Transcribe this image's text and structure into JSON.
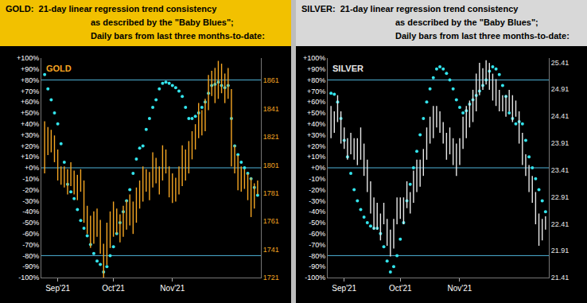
{
  "chart_data": [
    {
      "type": "combo",
      "title": [
        "GOLD:  21-day linear regression trend consistency",
        "as described by the \"Baby Blues\";",
        "Daily bars from last three months-to-date:"
      ],
      "panel_label": "GOLD",
      "categories": [
        null,
        null,
        null,
        null,
        "Sep'21",
        null,
        null,
        null,
        null,
        null,
        null,
        null,
        null,
        null,
        null,
        null,
        null,
        null,
        null,
        null,
        null,
        "Oct'21",
        null,
        null,
        null,
        null,
        null,
        null,
        null,
        null,
        null,
        null,
        null,
        null,
        null,
        null,
        null,
        null,
        null,
        "Nov'21",
        null,
        null,
        null,
        null,
        null,
        null,
        null,
        null,
        null,
        null,
        null,
        null,
        null,
        null,
        null,
        null,
        null,
        null,
        null,
        null,
        null,
        null,
        null,
        null,
        null,
        null
      ],
      "ylim": [
        -100,
        100
      ],
      "yticks": [
        {
          "value": 100,
          "label": "+100%"
        },
        {
          "value": 90,
          "label": "+90%"
        },
        {
          "value": 80,
          "label": "+80%"
        },
        {
          "value": 70,
          "label": "+70%"
        },
        {
          "value": 60,
          "label": "+60%"
        },
        {
          "value": 50,
          "label": "+50%"
        },
        {
          "value": 40,
          "label": "+40%"
        },
        {
          "value": 30,
          "label": "+30%"
        },
        {
          "value": 20,
          "label": "+20%"
        },
        {
          "value": 10,
          "label": "+10%"
        },
        {
          "value": 0,
          "label": "+0%"
        },
        {
          "value": -10,
          "label": "-10%"
        },
        {
          "value": -20,
          "label": "-20%"
        },
        {
          "value": -30,
          "label": "-30%"
        },
        {
          "value": -40,
          "label": "-40%"
        },
        {
          "value": -50,
          "label": "-50%"
        },
        {
          "value": -60,
          "label": "-60%"
        },
        {
          "value": -70,
          "label": "-70%"
        },
        {
          "value": -80,
          "label": "-80%"
        },
        {
          "value": -90,
          "label": "-90%"
        },
        {
          "value": -100,
          "label": "-100%"
        }
      ],
      "y2lim": [
        1721,
        1877
      ],
      "y2ticks": [
        1721,
        1741,
        1761,
        1781,
        1801,
        1821,
        1841,
        1861
      ],
      "hlines": [
        80,
        0,
        -80
      ],
      "grid": false,
      "series": [
        {
          "type": "scatter",
          "marker": "circle",
          "color": "#33e4ec",
          "values": [
            85,
            72,
            62,
            50,
            40,
            22,
            5,
            -15,
            -22,
            -28,
            -38,
            -48,
            -55,
            -62,
            -70,
            -78,
            -85,
            -88,
            -95,
            -90,
            -80,
            -72,
            -60,
            -50,
            -40,
            -30,
            -20,
            -5,
            8,
            18,
            20,
            35,
            45,
            55,
            62,
            72,
            77,
            78,
            77,
            75,
            73,
            70,
            65,
            55,
            45,
            45,
            47,
            50,
            55,
            60,
            68,
            75,
            76,
            78,
            75,
            73,
            75,
            45,
            20,
            12,
            5,
            0,
            -5,
            -10,
            -18,
            -25
          ]
        },
        {
          "type": "range",
          "axis": "y2",
          "color": "#f5a623",
          "low": [
            1795,
            1808,
            1810,
            1803,
            1790,
            1787,
            1785,
            1780,
            1786,
            1780,
            1776,
            1782,
            1760,
            1752,
            1742,
            1745,
            1750,
            1738,
            1721,
            1730,
            1742,
            1750,
            1752,
            1746,
            1750,
            1755,
            1758,
            1752,
            1760,
            1770,
            1775,
            1782,
            1776,
            1785,
            1788,
            1780,
            1790,
            1795,
            1778,
            1774,
            1775,
            1780,
            1786,
            1790,
            1795,
            1805,
            1812,
            1820,
            1822,
            1825,
            1840,
            1850,
            1845,
            1848,
            1852,
            1845,
            1848,
            1800,
            1795,
            1783,
            1782,
            1784,
            1776,
            1764,
            1770,
            1780
          ],
          "high": [
            1832,
            1828,
            1826,
            1822,
            1812,
            1800,
            1800,
            1798,
            1803,
            1797,
            1794,
            1798,
            1790,
            1772,
            1765,
            1768,
            1770,
            1762,
            1745,
            1760,
            1768,
            1775,
            1770,
            1766,
            1772,
            1776,
            1780,
            1775,
            1785,
            1790,
            1800,
            1798,
            1796,
            1810,
            1806,
            1800,
            1815,
            1812,
            1800,
            1795,
            1792,
            1800,
            1815,
            1812,
            1818,
            1825,
            1830,
            1845,
            1840,
            1848,
            1865,
            1868,
            1870,
            1875,
            1873,
            1866,
            1870,
            1855,
            1815,
            1808,
            1800,
            1798,
            1795,
            1792,
            1788,
            1790
          ]
        }
      ]
    },
    {
      "type": "combo",
      "title": [
        "SILVER:  21-day linear regression trend consistency",
        "as described by the \"Baby Blues\";",
        "Daily bars from last three months-to-date:"
      ],
      "panel_label": "SILVER",
      "categories": [
        null,
        null,
        null,
        null,
        "Sep'21",
        null,
        null,
        null,
        null,
        null,
        null,
        null,
        null,
        null,
        null,
        null,
        null,
        null,
        null,
        null,
        null,
        "Oct'21",
        null,
        null,
        null,
        null,
        null,
        null,
        null,
        null,
        null,
        null,
        null,
        null,
        null,
        null,
        null,
        null,
        null,
        "Nov'21",
        null,
        null,
        null,
        null,
        null,
        null,
        null,
        null,
        null,
        null,
        null,
        null,
        null,
        null,
        null,
        null,
        null,
        null,
        null,
        null,
        null,
        null,
        null,
        null,
        null,
        null
      ],
      "ylim": [
        -100,
        100
      ],
      "yticks": [
        {
          "value": 100,
          "label": "+100%"
        },
        {
          "value": 90,
          "label": "+90%"
        },
        {
          "value": 80,
          "label": "+80%"
        },
        {
          "value": 70,
          "label": "+70%"
        },
        {
          "value": 60,
          "label": "+60%"
        },
        {
          "value": 50,
          "label": "+50%"
        },
        {
          "value": 40,
          "label": "+40%"
        },
        {
          "value": 30,
          "label": "+30%"
        },
        {
          "value": 20,
          "label": "+20%"
        },
        {
          "value": 10,
          "label": "+10%"
        },
        {
          "value": 0,
          "label": "+0%"
        },
        {
          "value": -10,
          "label": "-10%"
        },
        {
          "value": -20,
          "label": "-20%"
        },
        {
          "value": -30,
          "label": "-30%"
        },
        {
          "value": -40,
          "label": "-40%"
        },
        {
          "value": -50,
          "label": "-50%"
        },
        {
          "value": -60,
          "label": "-60%"
        },
        {
          "value": -70,
          "label": "-70%"
        },
        {
          "value": -80,
          "label": "-80%"
        },
        {
          "value": -90,
          "label": "-90%"
        },
        {
          "value": -100,
          "label": "-100%"
        }
      ],
      "y2lim": [
        21.41,
        25.49
      ],
      "y2ticks": [
        21.41,
        21.91,
        22.41,
        22.91,
        23.41,
        23.91,
        24.41,
        24.91,
        25.41
      ],
      "hlines": [
        80,
        0,
        -80
      ],
      "grid": false,
      "series": [
        {
          "type": "scatter",
          "marker": "circle",
          "color": "#33e4ec",
          "values": [
            68,
            67,
            60,
            45,
            25,
            10,
            -5,
            -20,
            -30,
            -38,
            -45,
            -50,
            -53,
            -55,
            -55,
            -60,
            -72,
            -85,
            -95,
            -90,
            -80,
            -65,
            -50,
            -30,
            -15,
            0,
            15,
            30,
            45,
            60,
            72,
            82,
            90,
            92,
            90,
            86,
            80,
            72,
            62,
            55,
            50,
            52,
            58,
            62,
            66,
            70,
            75,
            80,
            88,
            92,
            90,
            85,
            75,
            65,
            50,
            45,
            40,
            42,
            40,
            25,
            10,
            0,
            -10,
            -20,
            -30,
            -40
          ]
        },
        {
          "type": "range",
          "axis": "y2",
          "color": "#e8e8e8",
          "low": [
            24.0,
            24.1,
            24.3,
            23.9,
            23.8,
            23.6,
            23.7,
            23.6,
            23.5,
            23.6,
            23.3,
            23.0,
            22.6,
            22.3,
            22.3,
            22.1,
            22.4,
            22.0,
            21.8,
            21.95,
            22.4,
            22.5,
            22.4,
            22.7,
            22.6,
            22.8,
            23.0,
            23.1,
            23.3,
            23.6,
            23.9,
            24.0,
            24.2,
            24.1,
            23.9,
            23.6,
            23.7,
            23.5,
            23.3,
            23.5,
            23.8,
            24.0,
            24.2,
            24.3,
            24.5,
            24.8,
            24.9,
            25.0,
            24.9,
            24.7,
            24.6,
            24.5,
            24.5,
            24.4,
            24.5,
            24.3,
            24.4,
            23.9,
            23.5,
            23.3,
            23.0,
            22.8,
            22.4,
            22.0,
            22.1,
            22.3
          ],
          "high": [
            24.6,
            24.5,
            24.8,
            24.5,
            24.2,
            24.0,
            24.1,
            24.0,
            24.0,
            24.2,
            23.9,
            23.6,
            23.2,
            22.9,
            22.8,
            22.6,
            22.8,
            22.5,
            22.3,
            22.5,
            22.9,
            22.9,
            22.9,
            23.2,
            23.0,
            23.4,
            23.6,
            23.6,
            23.8,
            24.2,
            24.4,
            24.6,
            24.6,
            24.5,
            24.3,
            24.1,
            24.2,
            24.0,
            23.9,
            24.0,
            24.4,
            24.6,
            24.7,
            24.9,
            25.2,
            25.4,
            25.3,
            25.45,
            25.4,
            25.2,
            25.1,
            24.9,
            24.8,
            24.8,
            24.9,
            24.8,
            24.7,
            24.5,
            24.1,
            23.7,
            23.5,
            23.3,
            23.0,
            22.6,
            22.5,
            22.55
          ]
        }
      ]
    }
  ]
}
